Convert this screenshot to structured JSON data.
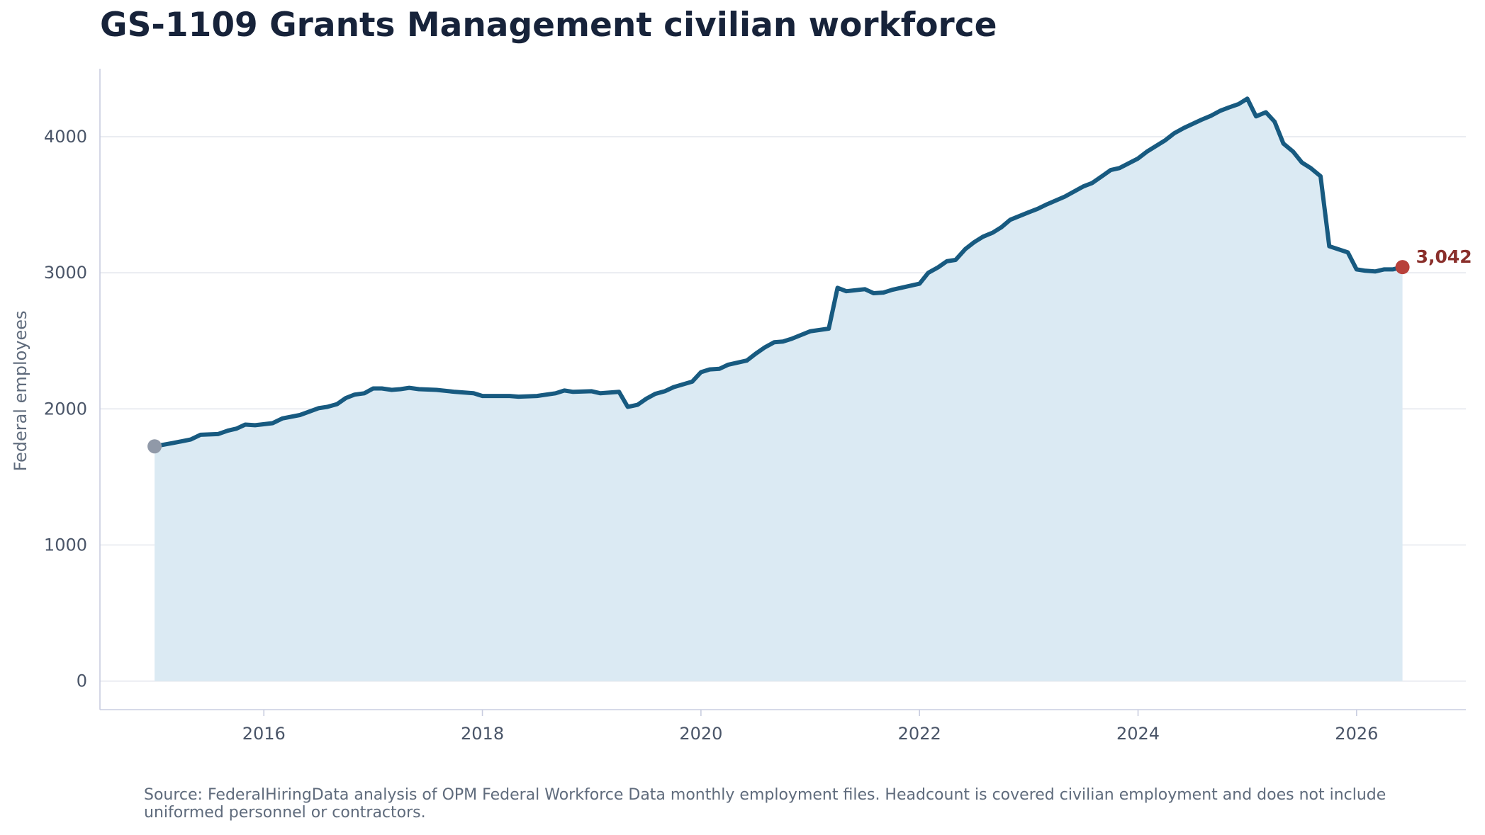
{
  "chart_data": {
    "type": "area",
    "title": "GS-1109 Grants Management civilian workforce",
    "xlabel": "",
    "ylabel": "Federal employees",
    "x_ticks": [
      "2016",
      "2018",
      "2020",
      "2022",
      "2024",
      "2026"
    ],
    "y_ticks": [
      "0",
      "1000",
      "2000",
      "3000",
      "4000"
    ],
    "xlim": [
      2014.5,
      2027.0
    ],
    "ylim": [
      -210,
      4500
    ],
    "grid": "horizontal",
    "colors": {
      "line": "#175a80",
      "fill": "#dbeaf3",
      "start_marker": "#9099a8",
      "end_marker": "#b8413b",
      "end_label": "#8a2f2b"
    },
    "end_label": "3,042",
    "series": [
      {
        "points": [
          [
            2015.0,
            1725
          ],
          [
            2015.17,
            1750
          ],
          [
            2015.33,
            1775
          ],
          [
            2015.42,
            1810
          ],
          [
            2015.58,
            1815
          ],
          [
            2015.67,
            1840
          ],
          [
            2015.75,
            1855
          ],
          [
            2015.83,
            1885
          ],
          [
            2015.92,
            1880
          ],
          [
            2016.08,
            1895
          ],
          [
            2016.17,
            1930
          ],
          [
            2016.33,
            1955
          ],
          [
            2016.5,
            2005
          ],
          [
            2016.58,
            2015
          ],
          [
            2016.67,
            2035
          ],
          [
            2016.75,
            2080
          ],
          [
            2016.83,
            2105
          ],
          [
            2016.92,
            2115
          ],
          [
            2017.0,
            2150
          ],
          [
            2017.08,
            2150
          ],
          [
            2017.17,
            2140
          ],
          [
            2017.25,
            2145
          ],
          [
            2017.33,
            2155
          ],
          [
            2017.42,
            2145
          ],
          [
            2017.58,
            2140
          ],
          [
            2017.75,
            2125
          ],
          [
            2017.92,
            2115
          ],
          [
            2018.0,
            2095
          ],
          [
            2018.08,
            2095
          ],
          [
            2018.25,
            2095
          ],
          [
            2018.33,
            2090
          ],
          [
            2018.5,
            2095
          ],
          [
            2018.67,
            2115
          ],
          [
            2018.75,
            2135
          ],
          [
            2018.83,
            2125
          ],
          [
            2019.0,
            2130
          ],
          [
            2019.08,
            2115
          ],
          [
            2019.25,
            2125
          ],
          [
            2019.33,
            2015
          ],
          [
            2019.42,
            2030
          ],
          [
            2019.5,
            2075
          ],
          [
            2019.58,
            2110
          ],
          [
            2019.67,
            2130
          ],
          [
            2019.75,
            2160
          ],
          [
            2019.92,
            2200
          ],
          [
            2020.0,
            2270
          ],
          [
            2020.08,
            2290
          ],
          [
            2020.17,
            2295
          ],
          [
            2020.25,
            2325
          ],
          [
            2020.42,
            2355
          ],
          [
            2020.5,
            2405
          ],
          [
            2020.58,
            2450
          ],
          [
            2020.67,
            2490
          ],
          [
            2020.75,
            2495
          ],
          [
            2020.83,
            2515
          ],
          [
            2021.0,
            2570
          ],
          [
            2021.17,
            2590
          ],
          [
            2021.25,
            2890
          ],
          [
            2021.33,
            2865
          ],
          [
            2021.5,
            2880
          ],
          [
            2021.58,
            2850
          ],
          [
            2021.67,
            2855
          ],
          [
            2021.75,
            2875
          ],
          [
            2021.83,
            2890
          ],
          [
            2022.0,
            2920
          ],
          [
            2022.08,
            3000
          ],
          [
            2022.17,
            3040
          ],
          [
            2022.25,
            3085
          ],
          [
            2022.33,
            3095
          ],
          [
            2022.42,
            3175
          ],
          [
            2022.5,
            3225
          ],
          [
            2022.58,
            3265
          ],
          [
            2022.67,
            3295
          ],
          [
            2022.75,
            3335
          ],
          [
            2022.83,
            3390
          ],
          [
            2023.0,
            3445
          ],
          [
            2023.08,
            3470
          ],
          [
            2023.17,
            3505
          ],
          [
            2023.33,
            3560
          ],
          [
            2023.5,
            3635
          ],
          [
            2023.58,
            3660
          ],
          [
            2023.67,
            3710
          ],
          [
            2023.75,
            3755
          ],
          [
            2023.83,
            3770
          ],
          [
            2024.0,
            3840
          ],
          [
            2024.08,
            3890
          ],
          [
            2024.25,
            3975
          ],
          [
            2024.33,
            4025
          ],
          [
            2024.42,
            4065
          ],
          [
            2024.58,
            4125
          ],
          [
            2024.67,
            4155
          ],
          [
            2024.75,
            4190
          ],
          [
            2024.83,
            4215
          ],
          [
            2024.92,
            4240
          ],
          [
            2025.0,
            4280
          ],
          [
            2025.08,
            4150
          ],
          [
            2025.17,
            4180
          ],
          [
            2025.25,
            4110
          ],
          [
            2025.33,
            3950
          ],
          [
            2025.42,
            3890
          ],
          [
            2025.5,
            3810
          ],
          [
            2025.58,
            3770
          ],
          [
            2025.67,
            3710
          ],
          [
            2025.75,
            3195
          ],
          [
            2025.92,
            3150
          ],
          [
            2026.0,
            3025
          ],
          [
            2026.08,
            3015
          ],
          [
            2026.17,
            3010
          ],
          [
            2026.25,
            3025
          ],
          [
            2026.33,
            3025
          ],
          [
            2026.42,
            3042
          ]
        ]
      }
    ]
  },
  "footer": {
    "source": "Source: FederalHiringData analysis of OPM Federal Workforce Data monthly employment files. Headcount is covered civilian employment and does not include uniformed personnel or contractors."
  }
}
